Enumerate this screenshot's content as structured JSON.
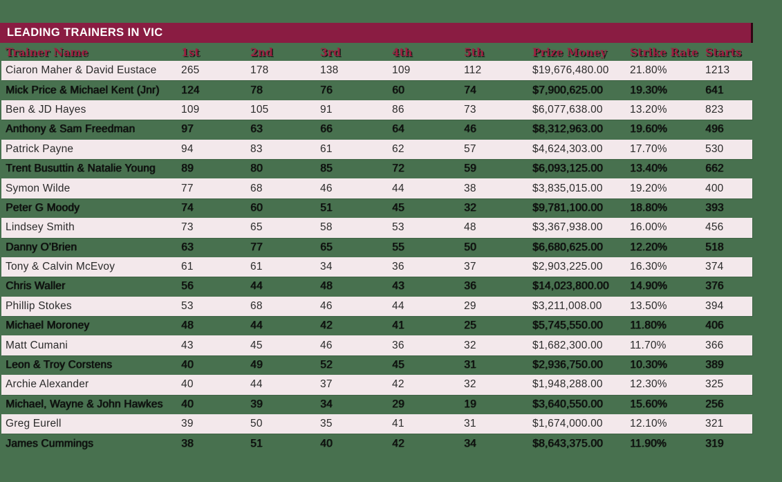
{
  "title_bar": {
    "title": "LEADING TRAINERS IN VIC"
  },
  "colors": {
    "background_green": "#48714F",
    "maroon_bar": "#8A1C42",
    "header_text_maroon": "#9B2040",
    "row_pink": "#F3E8EB",
    "title_text": "#FFFFFF",
    "data_text": "#2B2B2B"
  },
  "chart_data": {
    "type": "table",
    "title": "LEADING TRAINERS IN VIC",
    "columns": [
      "Trainer Name",
      "1st",
      "2nd",
      "3rd",
      "4th",
      "5th",
      "Prize Money",
      "Strike Rate",
      "Starts"
    ],
    "rows": [
      [
        "Ciaron Maher & David Eustace",
        "265",
        "178",
        "138",
        "109",
        "112",
        "$19,676,480.00",
        "21.80%",
        "1213"
      ],
      [
        "Mick Price & Michael Kent (Jnr)",
        "124",
        "78",
        "76",
        "60",
        "74",
        "$7,900,625.00",
        "19.30%",
        "641"
      ],
      [
        "Ben & JD Hayes",
        "109",
        "105",
        "91",
        "86",
        "73",
        "$6,077,638.00",
        "13.20%",
        "823"
      ],
      [
        "Anthony & Sam Freedman",
        "97",
        "63",
        "66",
        "64",
        "46",
        "$8,312,963.00",
        "19.60%",
        "496"
      ],
      [
        "Patrick Payne",
        "94",
        "83",
        "61",
        "62",
        "57",
        "$4,624,303.00",
        "17.70%",
        "530"
      ],
      [
        "Trent Busuttin & Natalie Young",
        "89",
        "80",
        "85",
        "72",
        "59",
        "$6,093,125.00",
        "13.40%",
        "662"
      ],
      [
        "Symon Wilde",
        "77",
        "68",
        "46",
        "44",
        "38",
        "$3,835,015.00",
        "19.20%",
        "400"
      ],
      [
        "Peter G Moody",
        "74",
        "60",
        "51",
        "45",
        "32",
        "$9,781,100.00",
        "18.80%",
        "393"
      ],
      [
        "Lindsey Smith",
        "73",
        "65",
        "58",
        "53",
        "48",
        "$3,367,938.00",
        "16.00%",
        "456"
      ],
      [
        "Danny O'Brien",
        "63",
        "77",
        "65",
        "55",
        "50",
        "$6,680,625.00",
        "12.20%",
        "518"
      ],
      [
        "Tony & Calvin McEvoy",
        "61",
        "61",
        "34",
        "36",
        "37",
        "$2,903,225.00",
        "16.30%",
        "374"
      ],
      [
        "Chris Waller",
        "56",
        "44",
        "48",
        "43",
        "36",
        "$14,023,800.00",
        "14.90%",
        "376"
      ],
      [
        "Phillip Stokes",
        "53",
        "68",
        "46",
        "44",
        "29",
        "$3,211,008.00",
        "13.50%",
        "394"
      ],
      [
        "Michael Moroney",
        "48",
        "44",
        "42",
        "41",
        "25",
        "$5,745,550.00",
        "11.80%",
        "406"
      ],
      [
        "Matt Cumani",
        "43",
        "45",
        "46",
        "36",
        "32",
        "$1,682,300.00",
        "11.70%",
        "366"
      ],
      [
        "Leon & Troy Corstens",
        "40",
        "49",
        "52",
        "45",
        "31",
        "$2,936,750.00",
        "10.30%",
        "389"
      ],
      [
        "Archie Alexander",
        "40",
        "44",
        "37",
        "42",
        "32",
        "$1,948,288.00",
        "12.30%",
        "325"
      ],
      [
        "Michael, Wayne & John Hawkes",
        "40",
        "39",
        "34",
        "29",
        "19",
        "$3,640,550.00",
        "15.60%",
        "256"
      ],
      [
        "Greg Eurell",
        "39",
        "50",
        "35",
        "41",
        "31",
        "$1,674,000.00",
        "12.10%",
        "321"
      ],
      [
        "James Cummings",
        "38",
        "51",
        "40",
        "42",
        "34",
        "$8,643,375.00",
        "11.90%",
        "319"
      ]
    ]
  }
}
